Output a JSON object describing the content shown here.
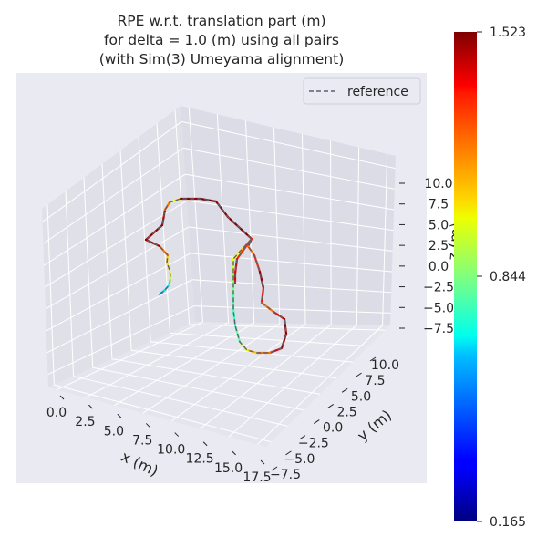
{
  "chart_data": {
    "type": "line3d",
    "title_lines": [
      "RPE w.r.t. translation part (m)",
      "for delta = 1.0 (m) using all pairs",
      "(with Sim(3) Umeyama alignment)"
    ],
    "xlabel": "x (m)",
    "ylabel": "y (m)",
    "zlabel": "z (m)",
    "x_ticks": [
      "0.0",
      "2.5",
      "5.0",
      "7.5",
      "10.0",
      "12.5",
      "15.0",
      "17.5"
    ],
    "y_ticks": [
      "−7.5",
      "−5.0",
      "−2.5",
      "0.0",
      "2.5",
      "5.0",
      "7.5",
      "10.0"
    ],
    "z_ticks": [
      "10.0",
      "7.5",
      "5.0",
      "2.5",
      "0.0",
      "−2.5",
      "−5.0",
      "−7.5"
    ],
    "legend": {
      "label": "reference",
      "style": "dashed",
      "color": "#5f5f6e",
      "placement": "top-right"
    },
    "colorbar": {
      "colormap": "jet",
      "min_label": "0.165",
      "mid_label": "0.844",
      "max_label": "1.523",
      "min": 0.165,
      "mid": 0.844,
      "max": 1.523
    },
    "trajectory_rpe_m": [
      0.6,
      0.66,
      0.9,
      1.0,
      1.06,
      1.08,
      1.2,
      1.48,
      1.5,
      1.46,
      1.2,
      1.0,
      1.5,
      1.52,
      1.5,
      1.52,
      1.5,
      1.2,
      1.3,
      1.5,
      1.35,
      1.2,
      1.4,
      1.5,
      1.5,
      1.4,
      1.2,
      1.1,
      0.95,
      0.8,
      0.75,
      0.78,
      0.85,
      0.9,
      0.95,
      1.0,
      1.1,
      1.2,
      1.3,
      1.4,
      1.4,
      1.5
    ],
    "grid": true,
    "background": "#eaeaf2"
  }
}
